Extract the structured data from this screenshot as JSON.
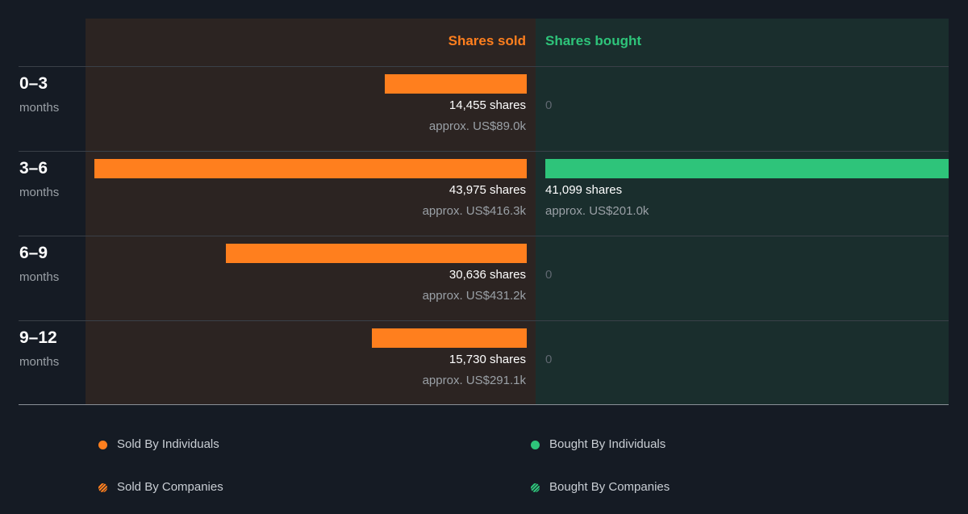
{
  "chart_data": {
    "type": "bar",
    "headers": {
      "sold": "Shares sold",
      "bought": "Shares bought"
    },
    "categories": [
      {
        "period": "0–3",
        "unit": "months"
      },
      {
        "period": "3–6",
        "unit": "months"
      },
      {
        "period": "6–9",
        "unit": "months"
      },
      {
        "period": "9–12",
        "unit": "months"
      }
    ],
    "series": [
      {
        "name": "Shares sold",
        "values": [
          14455,
          43975,
          30636,
          15730
        ],
        "shares_labels": [
          "14,455 shares",
          "43,975 shares",
          "30,636 shares",
          "15,730 shares"
        ],
        "value_labels": [
          "approx. US$89.0k",
          "approx. US$416.3k",
          "approx. US$431.2k",
          "approx. US$291.1k"
        ]
      },
      {
        "name": "Shares bought",
        "values": [
          0,
          41099,
          0,
          0
        ],
        "shares_labels": [
          "0",
          "41,099 shares",
          "0",
          "0"
        ],
        "value_labels": [
          "",
          "approx. US$201.0k",
          "",
          ""
        ]
      }
    ],
    "legend": [
      {
        "label": "Sold By Individuals",
        "color": "#ff7f1e",
        "style": "solid"
      },
      {
        "label": "Bought By Individuals",
        "color": "#2ec47a",
        "style": "solid"
      },
      {
        "label": "Sold By Companies",
        "color": "#ff7f1e",
        "style": "hatched"
      },
      {
        "label": "Bought By Companies",
        "color": "#2ec47a",
        "style": "hatched"
      }
    ],
    "colors": {
      "sold": "#ff7f1e",
      "bought": "#2ec47a",
      "background": "#151b24",
      "sold_panel": "#2c2422",
      "bought_panel": "#1a2e2d"
    }
  }
}
